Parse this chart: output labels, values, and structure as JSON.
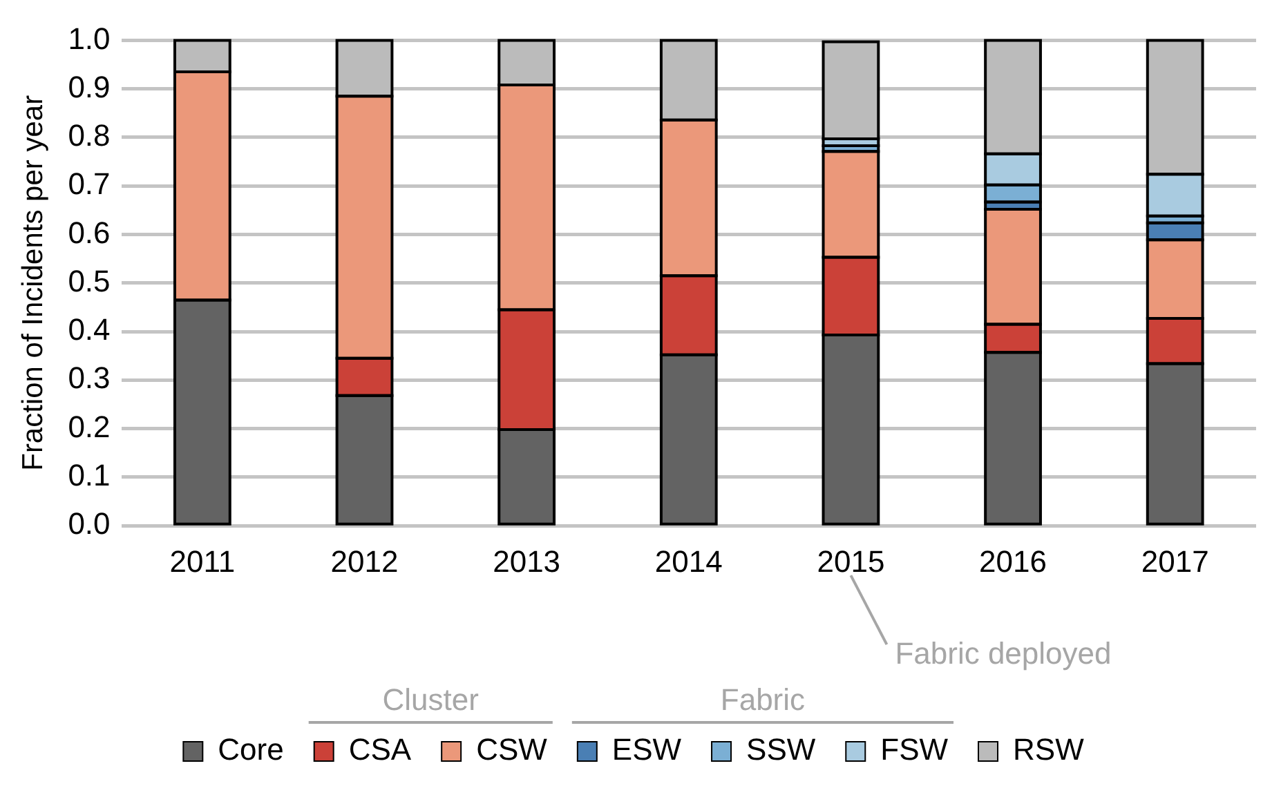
{
  "chart_data": {
    "type": "bar",
    "stacked": true,
    "ylabel": "Fraction of Incidents per year",
    "categories": [
      "2011",
      "2012",
      "2013",
      "2014",
      "2015",
      "2016",
      "2017"
    ],
    "series": [
      {
        "name": "Core",
        "color": "#636363",
        "values": [
          0.465,
          0.268,
          0.198,
          0.352,
          0.393,
          0.357,
          0.334
        ]
      },
      {
        "name": "CSA",
        "color": "#cb4138",
        "values": [
          0,
          0.077,
          0.247,
          0.163,
          0.16,
          0.058,
          0.093
        ]
      },
      {
        "name": "CSW",
        "color": "#eb987a",
        "values": [
          0.47,
          0.54,
          0.463,
          0.321,
          0.218,
          0.237,
          0.162
        ]
      },
      {
        "name": "ESW",
        "color": "#4a7fb4",
        "values": [
          0,
          0,
          0,
          0,
          0,
          0.015,
          0.035
        ]
      },
      {
        "name": "SSW",
        "color": "#7bafd4",
        "values": [
          0,
          0,
          0,
          0,
          0.012,
          0.035,
          0.014
        ]
      },
      {
        "name": "FSW",
        "color": "#a9cbe0",
        "values": [
          0,
          0,
          0,
          0,
          0.014,
          0.064,
          0.086
        ]
      },
      {
        "name": "RSW",
        "color": "#bbbbbb",
        "values": [
          0.065,
          0.115,
          0.092,
          0.164,
          0.2,
          0.234,
          0.276
        ]
      }
    ],
    "ylim": [
      0,
      1
    ],
    "yticks": [
      {
        "value": 0,
        "label": "0.0"
      },
      0.1,
      0.2,
      0.3,
      0.4,
      0.5,
      0.6,
      0.7,
      0.8,
      0.9,
      {
        "value": 1,
        "label": "1.0"
      }
    ],
    "grid": "y",
    "legend": "bottom",
    "annotations": [
      "Cluster",
      "Fabric",
      "Fabric deployed"
    ]
  }
}
